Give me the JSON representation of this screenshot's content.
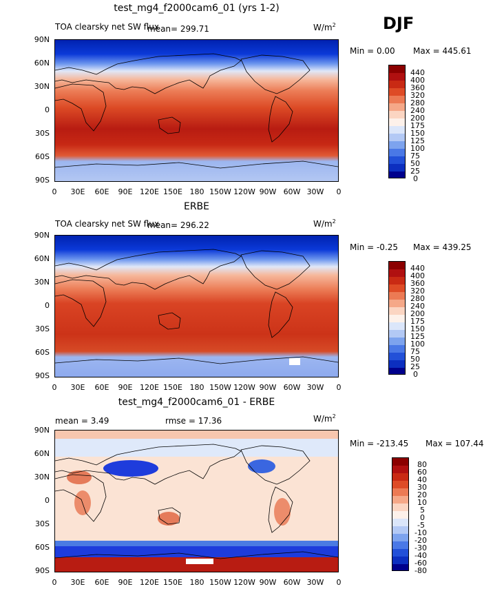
{
  "season": "DJF",
  "colors": {
    "dark_navy": "#000080",
    "blue": "#1e3cdc",
    "sky": "#7fa8ef",
    "pale": "#dde8fa",
    "cream": "#fbe3d4",
    "salmon": "#f3a585",
    "red": "#e0502b",
    "dark_red": "#a40d0d"
  },
  "chart_data": [
    {
      "type": "heatmap",
      "title": "test_mg4_f2000cam6_01 (yrs 1-2)",
      "variable": "TOA clearsky net SW flux",
      "mean_text": "mean= 299.71",
      "units": "W/m",
      "units_sup": "2",
      "min_text": "Min =   0.00",
      "max_text": "Max = 445.61",
      "x_ticks": [
        "0",
        "30E",
        "60E",
        "90E",
        "120E",
        "150E",
        "180",
        "150W",
        "120W",
        "90W",
        "60W",
        "30W",
        "0"
      ],
      "y_ticks": [
        "90N",
        "60N",
        "30N",
        "0",
        "30S",
        "60S",
        "90S"
      ],
      "levels": [
        "440",
        "400",
        "360",
        "320",
        "280",
        "240",
        "200",
        "175",
        "150",
        "125",
        "100",
        "75",
        "50",
        "25",
        "0"
      ],
      "zonal_profile": [
        {
          "lat": 90,
          "value": 0
        },
        {
          "lat": 60,
          "value": 60
        },
        {
          "lat": 40,
          "value": 250
        },
        {
          "lat": 20,
          "value": 340
        },
        {
          "lat": 0,
          "value": 360
        },
        {
          "lat": -30,
          "value": 420
        },
        {
          "lat": -60,
          "value": 380
        },
        {
          "lat": -75,
          "value": 120
        },
        {
          "lat": -90,
          "value": 140
        }
      ]
    },
    {
      "type": "heatmap",
      "title": "ERBE",
      "variable": "TOA clearsky net SW flux",
      "mean_text": "mean= 296.22",
      "units": "W/m",
      "units_sup": "2",
      "min_text": "Min = -0.25",
      "max_text": "Max = 439.25",
      "x_ticks": [
        "0",
        "30E",
        "60E",
        "90E",
        "120E",
        "150E",
        "180",
        "150W",
        "120W",
        "90W",
        "60W",
        "30W",
        "0"
      ],
      "y_ticks": [
        "90N",
        "60N",
        "30N",
        "0",
        "30S",
        "60S",
        "90S"
      ],
      "levels": [
        "440",
        "400",
        "360",
        "320",
        "280",
        "240",
        "200",
        "175",
        "150",
        "125",
        "100",
        "75",
        "50",
        "25",
        "0"
      ],
      "zonal_profile": [
        {
          "lat": 90,
          "value": 0
        },
        {
          "lat": 60,
          "value": 50
        },
        {
          "lat": 40,
          "value": 240
        },
        {
          "lat": 20,
          "value": 340
        },
        {
          "lat": 0,
          "value": 360
        },
        {
          "lat": -30,
          "value": 410
        },
        {
          "lat": -60,
          "value": 390
        },
        {
          "lat": -75,
          "value": 110
        },
        {
          "lat": -90,
          "value": 110
        }
      ]
    },
    {
      "type": "heatmap",
      "title": "test_mg4_f2000cam6_01 - ERBE",
      "mean_text": "mean =   3.49",
      "rmse_text": "rmse =  17.36",
      "units": "W/m",
      "units_sup": "2",
      "min_text": "Min = -213.45",
      "max_text": "Max = 107.44",
      "x_ticks": [
        "0",
        "30E",
        "60E",
        "90E",
        "120E",
        "150E",
        "180",
        "150W",
        "120W",
        "90W",
        "60W",
        "30W",
        "0"
      ],
      "y_ticks": [
        "90N",
        "60N",
        "30N",
        "0",
        "30S",
        "60S",
        "90S"
      ],
      "levels": [
        "80",
        "60",
        "40",
        "30",
        "20",
        "10",
        "5",
        "0",
        "-5",
        "-10",
        "-20",
        "-30",
        "-40",
        "-60",
        "-80"
      ]
    }
  ]
}
